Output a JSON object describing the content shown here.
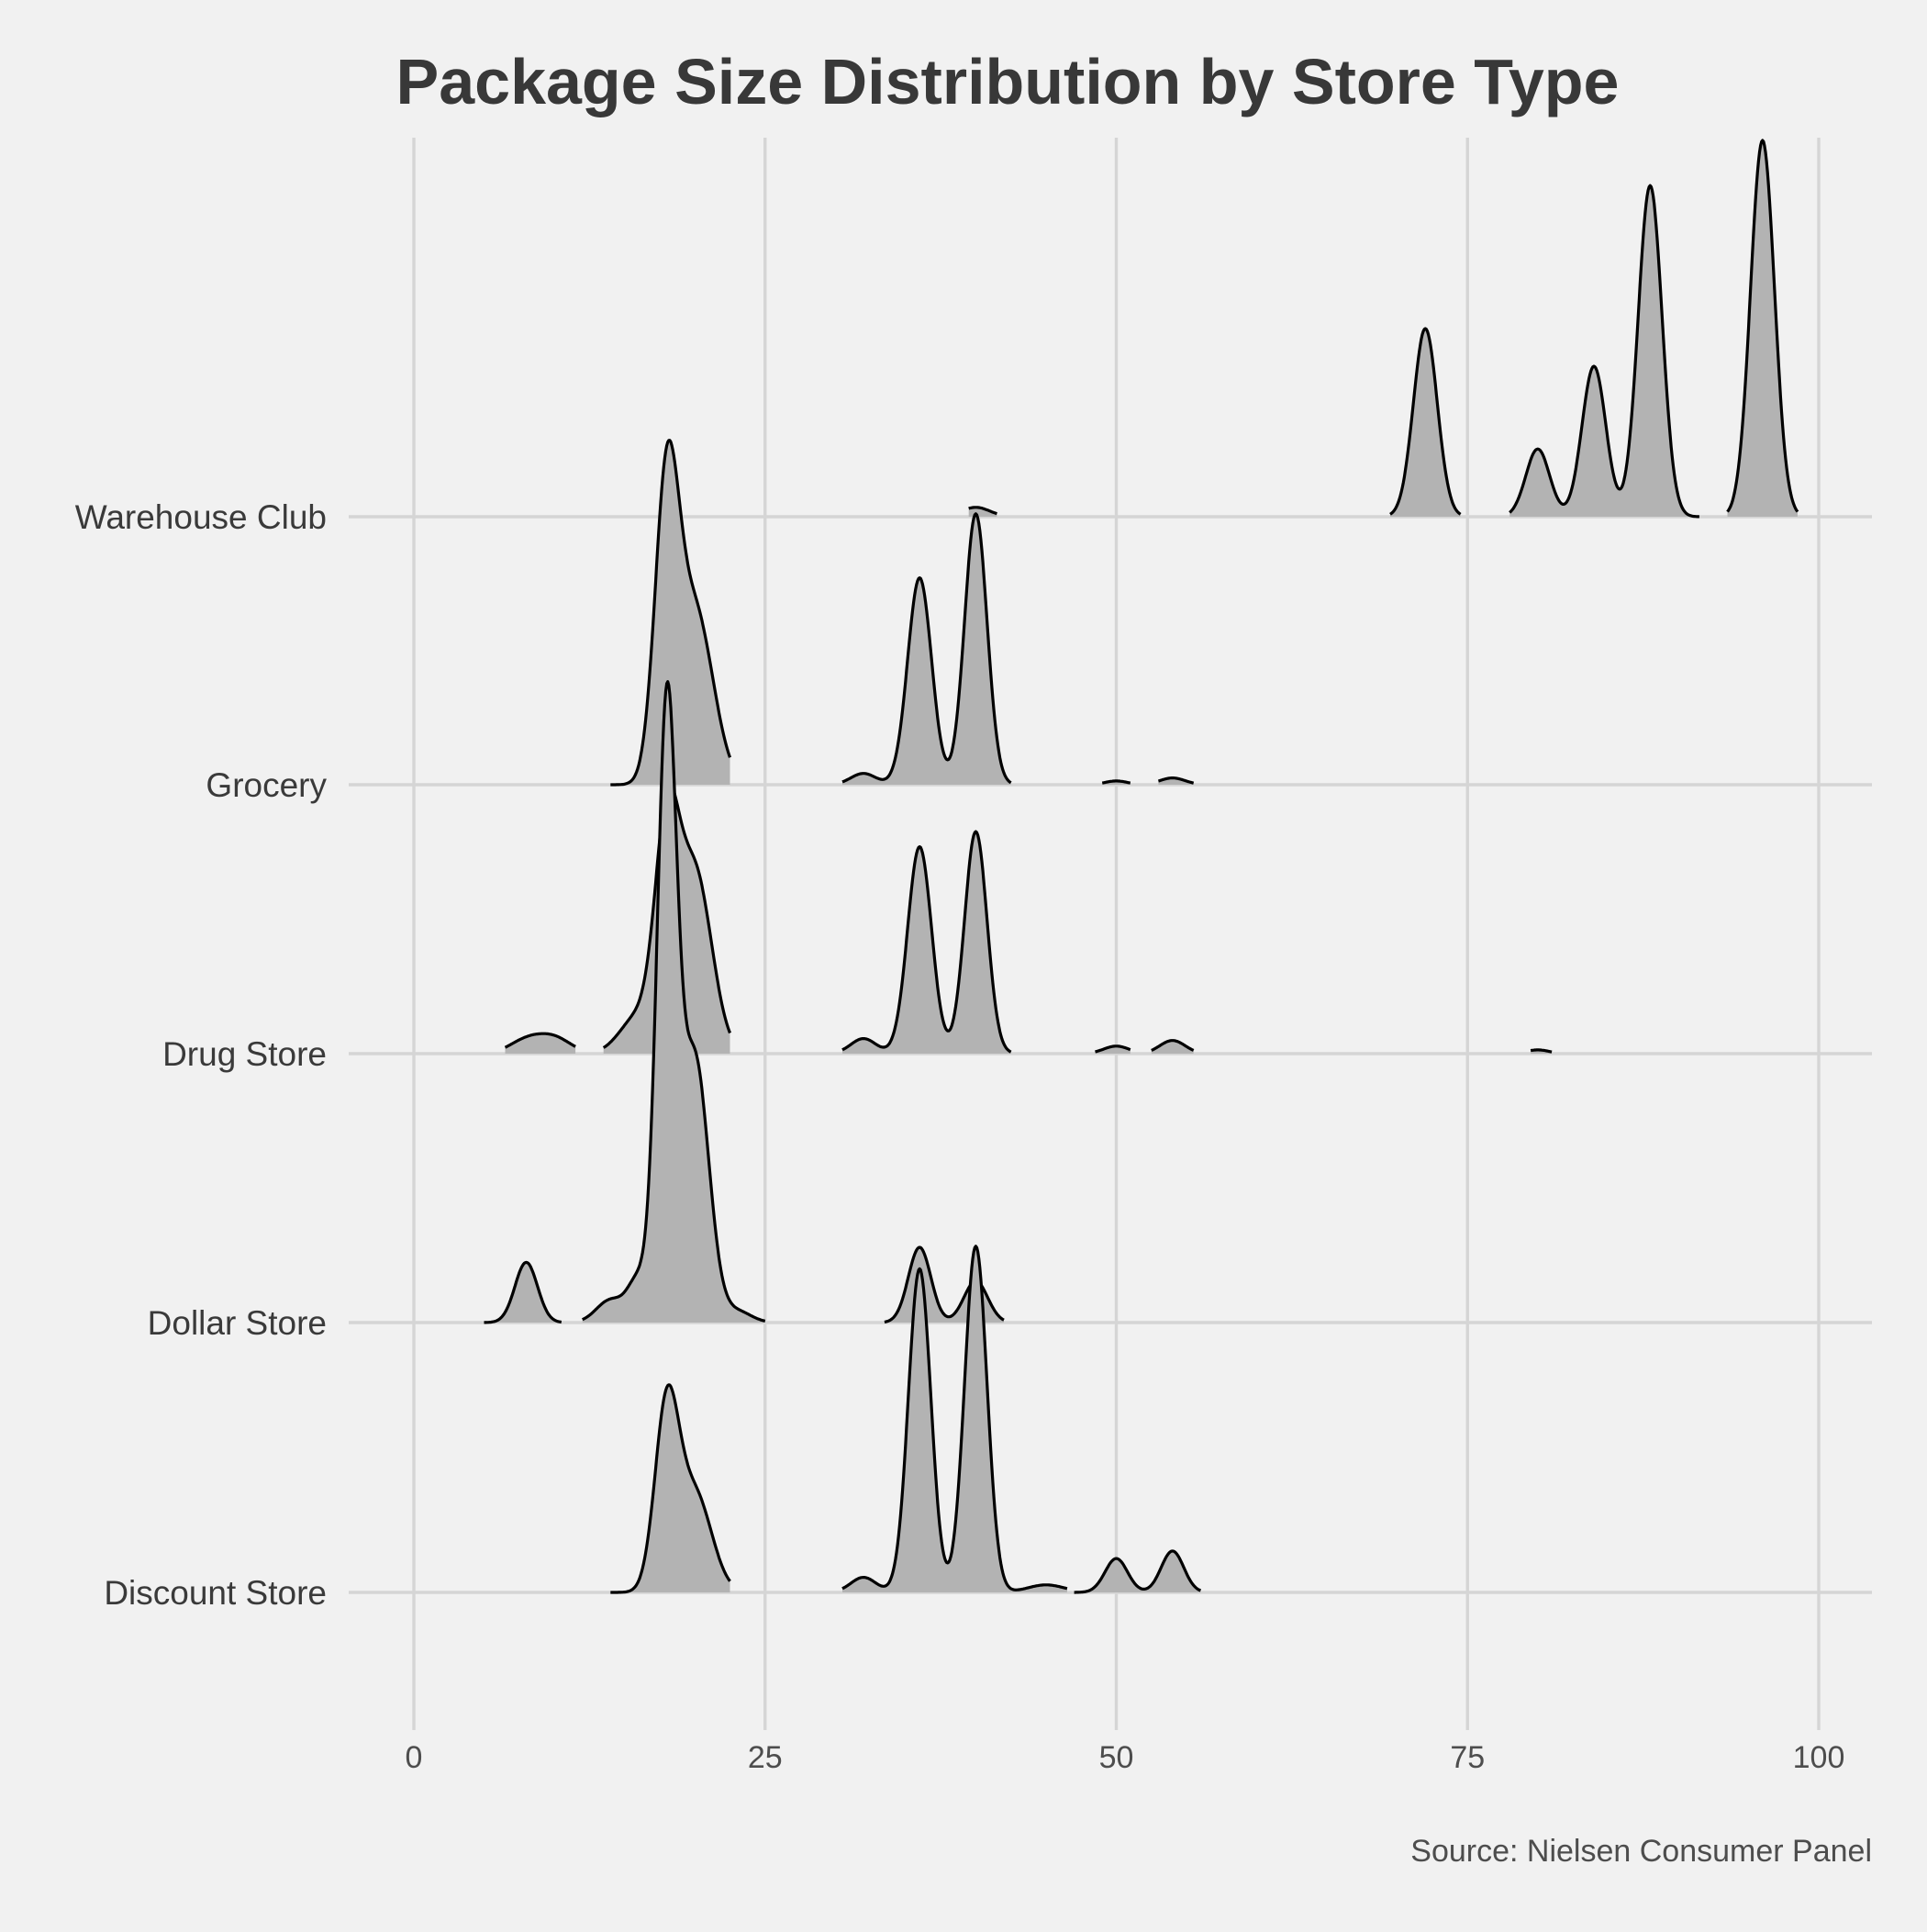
{
  "chart_data": {
    "type": "ridgeline",
    "title": "Package Size Distribution by Store Type",
    "caption": "Source: Nielsen Consumer Panel",
    "xlabel": "",
    "ylabel": "",
    "xlim": [
      -4.5,
      103.5
    ],
    "x_ticks": [
      0,
      25,
      50,
      75,
      100
    ],
    "x_tick_labels": [
      "0",
      "25",
      "50",
      "75",
      "100"
    ],
    "grid": true,
    "fill_color": "#b3b3b3",
    "line_color": "#000000",
    "background": "#f1f1f1",
    "categories": [
      "Warehouse Club",
      "Grocery",
      "Drug Store",
      "Dollar Store",
      "Discount Store"
    ],
    "series": [
      {
        "name": "Warehouse Club",
        "segments": [
          {
            "range": [
              39.5,
              41.5
            ],
            "peaks": [
              [
                40,
                0.025,
                1.0
              ]
            ]
          },
          {
            "range": [
              69.5,
              74.5
            ],
            "peaks": [
              [
                72,
                0.5,
                0.85
              ]
            ]
          },
          {
            "range": [
              78,
              91.5
            ],
            "peaks": [
              [
                80,
                0.18,
                0.85
              ],
              [
                84,
                0.4,
                0.85
              ],
              [
                88,
                0.88,
                0.85
              ]
            ]
          },
          {
            "range": [
              93.5,
              98.5
            ],
            "peaks": [
              [
                96,
                1.0,
                0.85
              ]
            ]
          }
        ]
      },
      {
        "name": "Grocery",
        "segments": [
          {
            "range": [
              14,
              22.5
            ],
            "peaks": [
              [
                18,
                0.76,
                0.85
              ],
              [
                20,
                0.46,
                1.3
              ]
            ]
          },
          {
            "range": [
              30.5,
              42.5
            ],
            "peaks": [
              [
                32,
                0.03,
                0.9
              ],
              [
                36,
                0.55,
                0.85
              ],
              [
                40,
                0.72,
                0.8
              ]
            ]
          },
          {
            "range": [
              49,
              51
            ],
            "peaks": [
              [
                50,
                0.01,
                0.8
              ]
            ]
          },
          {
            "range": [
              53,
              55.5
            ],
            "peaks": [
              [
                54,
                0.018,
                0.9
              ]
            ]
          }
        ]
      },
      {
        "name": "Drug Store",
        "segments": [
          {
            "range": [
              6.5,
              11.5
            ],
            "peaks": [
              [
                8,
                0.035,
                1.2
              ],
              [
                10,
                0.04,
                1.2
              ]
            ]
          },
          {
            "range": [
              13.5,
              22.5
            ],
            "peaks": [
              [
                18,
                0.55,
                0.85
              ],
              [
                20,
                0.48,
                1.2
              ],
              [
                16,
                0.1,
                1.3
              ]
            ]
          },
          {
            "range": [
              30.5,
              42.5
            ],
            "peaks": [
              [
                32,
                0.04,
                0.9
              ],
              [
                36,
                0.55,
                0.85
              ],
              [
                40,
                0.59,
                0.8
              ]
            ]
          },
          {
            "range": [
              48.5,
              51
            ],
            "peaks": [
              [
                50,
                0.02,
                0.9
              ]
            ]
          },
          {
            "range": [
              52.5,
              55.5
            ],
            "peaks": [
              [
                54,
                0.035,
                0.9
              ]
            ]
          },
          {
            "range": [
              79.5,
              81
            ],
            "peaks": [
              [
                80,
                0.01,
                0.8
              ]
            ]
          }
        ]
      },
      {
        "name": "Dollar Store",
        "segments": [
          {
            "range": [
              5,
              10.5
            ],
            "peaks": [
              [
                8,
                0.16,
                0.8
              ]
            ]
          },
          {
            "range": [
              12,
              25
            ],
            "peaks": [
              [
                14,
                0.06,
                1.0
              ],
              [
                16,
                0.11,
                0.75
              ],
              [
                18,
                1.6,
                0.7
              ],
              [
                20,
                0.7,
                1.0
              ],
              [
                23,
                0.03,
                1.0
              ]
            ]
          },
          {
            "range": [
              33.5,
              42
            ],
            "peaks": [
              [
                36,
                0.2,
                0.8
              ],
              [
                40,
                0.11,
                0.85
              ]
            ]
          }
        ]
      },
      {
        "name": "Discount Store",
        "segments": [
          {
            "range": [
              14,
              22.5
            ],
            "peaks": [
              [
                18,
                0.48,
                0.85
              ],
              [
                20,
                0.26,
                1.2
              ]
            ]
          },
          {
            "range": [
              30.5,
              46.5
            ],
            "peaks": [
              [
                32,
                0.04,
                0.9
              ],
              [
                36,
                0.86,
                0.8
              ],
              [
                40,
                0.92,
                0.8
              ],
              [
                45,
                0.02,
                1.3
              ]
            ]
          },
          {
            "range": [
              47,
              56
            ],
            "peaks": [
              [
                50,
                0.09,
                0.8
              ],
              [
                54,
                0.11,
                0.8
              ]
            ]
          }
        ]
      }
    ]
  }
}
